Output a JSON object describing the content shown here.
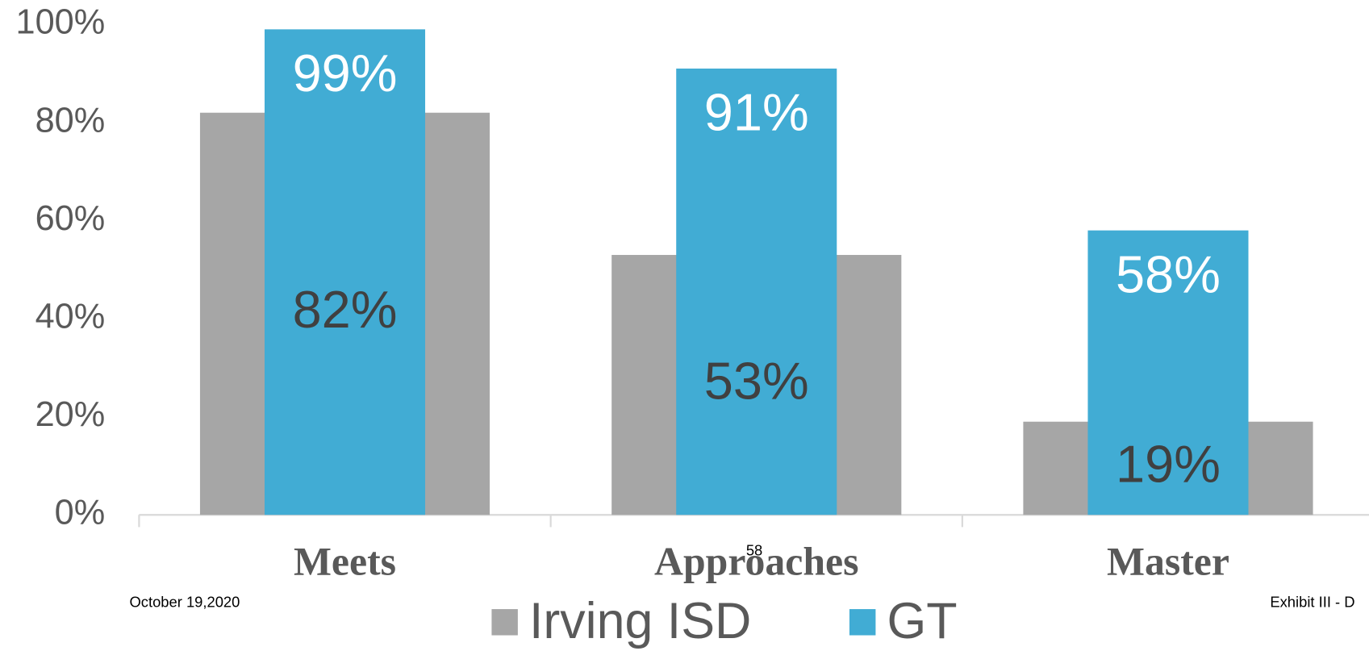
{
  "chart_data": {
    "type": "bar",
    "categories": [
      "Meets",
      "Approaches",
      "Master"
    ],
    "series": [
      {
        "name": "Irving ISD",
        "color": "#a6a6a6",
        "values": [
          82,
          53,
          19
        ],
        "value_labels": [
          "82%",
          "53%",
          "19%"
        ]
      },
      {
        "name": "GT",
        "color": "#41acd4",
        "values": [
          99,
          91,
          58
        ],
        "value_labels": [
          "99%",
          "91%",
          "58%"
        ]
      }
    ],
    "ylim": [
      0,
      100
    ],
    "yticks": [
      {
        "value": 0,
        "label": "0%"
      },
      {
        "value": 20,
        "label": "20%"
      },
      {
        "value": 40,
        "label": "40%"
      },
      {
        "value": 60,
        "label": "60%"
      },
      {
        "value": 80,
        "label": "80%"
      },
      {
        "value": 100,
        "label": "100%"
      }
    ],
    "grid": false,
    "legend": "bottom",
    "footer": {
      "date": "October 19,2020",
      "page": "58",
      "exhibit": "Exhibit III - D"
    }
  }
}
